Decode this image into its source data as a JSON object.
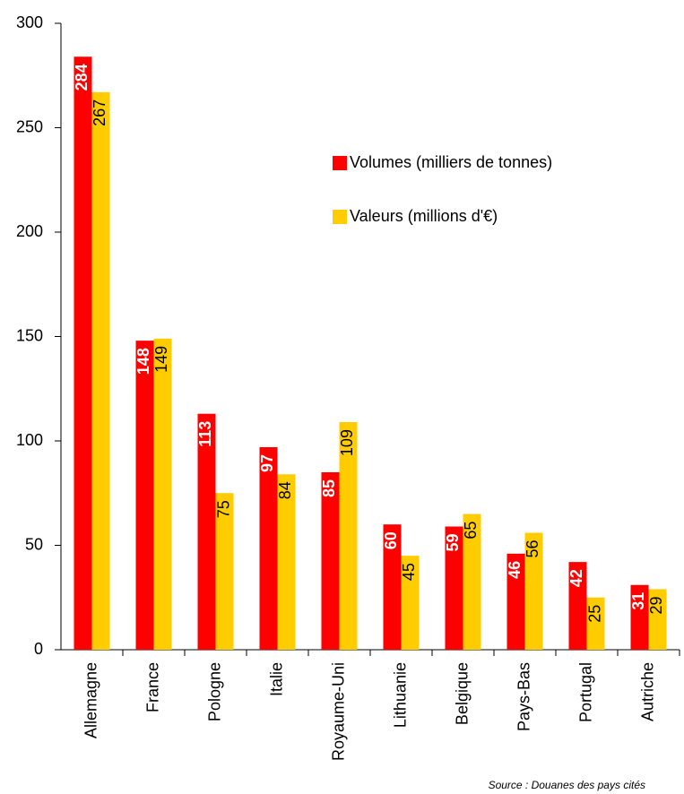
{
  "chart_data": {
    "type": "bar",
    "categories": [
      "Allemagne",
      "France",
      "Pologne",
      "Italie",
      "Royaume-Uni",
      "Lithuanie",
      "Belgique",
      "Pays-Bas",
      "Portugal",
      "Autriche"
    ],
    "series": [
      {
        "name": "Volumes (milliers de tonnes)",
        "color": "#ff0000",
        "values": [
          284,
          148,
          113,
          97,
          85,
          60,
          59,
          46,
          42,
          31
        ]
      },
      {
        "name": "Valeurs (millions d'€)",
        "color": "#ffcc00",
        "values": [
          267,
          149,
          75,
          84,
          109,
          45,
          65,
          56,
          25,
          29
        ]
      }
    ],
    "ylim": [
      0,
      300
    ],
    "yticks": [
      0,
      50,
      100,
      150,
      200,
      250,
      300
    ],
    "grid": false,
    "source": "Source : Douanes des pays cités"
  }
}
